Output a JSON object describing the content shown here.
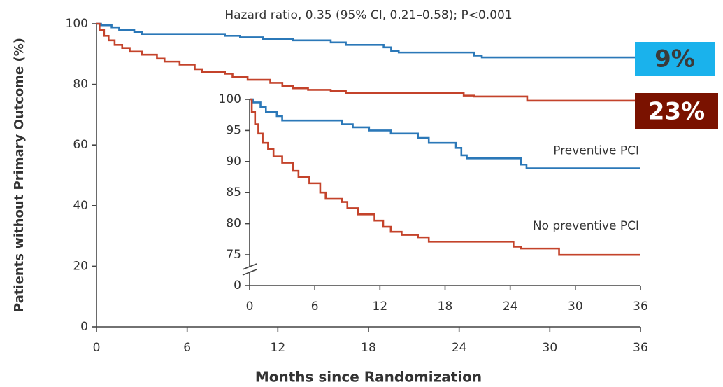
{
  "chart_data": [
    {
      "type": "line",
      "step": true,
      "annotation": "Hazard ratio, 0.35 (95% CI, 0.21–0.58); P<0.001",
      "xlabel": "Months since Randomization",
      "ylabel": "Patients without Primary Outcome (%)",
      "xlim": [
        0,
        36
      ],
      "xticks": [
        0,
        6,
        12,
        18,
        24,
        30,
        36
      ],
      "ylim": [
        0,
        100
      ],
      "yticks": [
        0,
        20,
        40,
        60,
        80,
        100
      ],
      "series": [
        {
          "color": "#2b78b8",
          "x": [
            0,
            0.3,
            1,
            1.5,
            2.5,
            3,
            8.5,
            9.5,
            11,
            13,
            15.5,
            16.5,
            19,
            19.5,
            20,
            25,
            25.5,
            36
          ],
          "values": [
            100,
            99.5,
            98.8,
            98,
            97.3,
            96.6,
            96,
            95.5,
            95,
            94.5,
            93.8,
            93,
            92.2,
            91,
            90.5,
            89.5,
            88.9,
            88.9
          ]
        },
        {
          "color": "#c4432b",
          "x": [
            0,
            0.2,
            0.5,
            0.8,
            1.2,
            1.7,
            2.2,
            3,
            4,
            4.5,
            5.5,
            6.5,
            7,
            8.5,
            9,
            10,
            11.5,
            12.3,
            13,
            14,
            15.5,
            16.5,
            24.3,
            25,
            28.5,
            36
          ],
          "values": [
            100,
            98,
            96,
            94.5,
            93,
            92,
            90.8,
            89.8,
            88.5,
            87.5,
            86.5,
            85,
            84,
            83.5,
            82.5,
            81.5,
            80.5,
            79.5,
            78.7,
            78.2,
            77.8,
            77.1,
            76.3,
            76,
            74.6,
            74.6
          ]
        }
      ],
      "callouts": [
        {
          "text": "9%",
          "background": "#1ab2ec",
          "color": "#3a3a3a"
        },
        {
          "text": "23%",
          "background": "#7a1200",
          "color": "#ffffff"
        }
      ]
    },
    {
      "type": "line",
      "step": true,
      "xlim": [
        0,
        36
      ],
      "xticks": [
        0,
        6,
        12,
        18,
        24,
        30,
        36
      ],
      "ylim": [
        0,
        100
      ],
      "ybreak": [
        0,
        75
      ],
      "yticks": [
        0,
        75,
        80,
        85,
        90,
        95,
        100
      ],
      "series": [
        {
          "name": "Preventive PCI",
          "color": "#2b78b8",
          "x": [
            0,
            0.3,
            1,
            1.5,
            2.5,
            3,
            8.5,
            9.5,
            11,
            13,
            15.5,
            16.5,
            19,
            19.5,
            20,
            25,
            25.5,
            36
          ],
          "values": [
            100,
            99.5,
            98.8,
            98,
            97.3,
            96.6,
            96,
            95.5,
            95,
            94.5,
            93.8,
            93,
            92.2,
            91,
            90.5,
            89.5,
            88.9,
            88.9
          ]
        },
        {
          "name": "No preventive PCI",
          "color": "#c4432b",
          "x": [
            0,
            0.2,
            0.5,
            0.8,
            1.2,
            1.7,
            2.2,
            3,
            4,
            4.5,
            5.5,
            6.5,
            7,
            8.5,
            9,
            10,
            11.5,
            12.3,
            13,
            14,
            15.5,
            16.5,
            24.3,
            25,
            28.5,
            36
          ],
          "values": [
            100,
            98,
            96,
            94.5,
            93,
            92,
            90.8,
            89.8,
            88.5,
            87.5,
            86.5,
            85,
            84,
            83.5,
            82.5,
            81.5,
            80.5,
            79.5,
            78.7,
            78.2,
            77.8,
            77.1,
            76.3,
            76,
            74.6,
            74.6
          ]
        }
      ]
    }
  ]
}
